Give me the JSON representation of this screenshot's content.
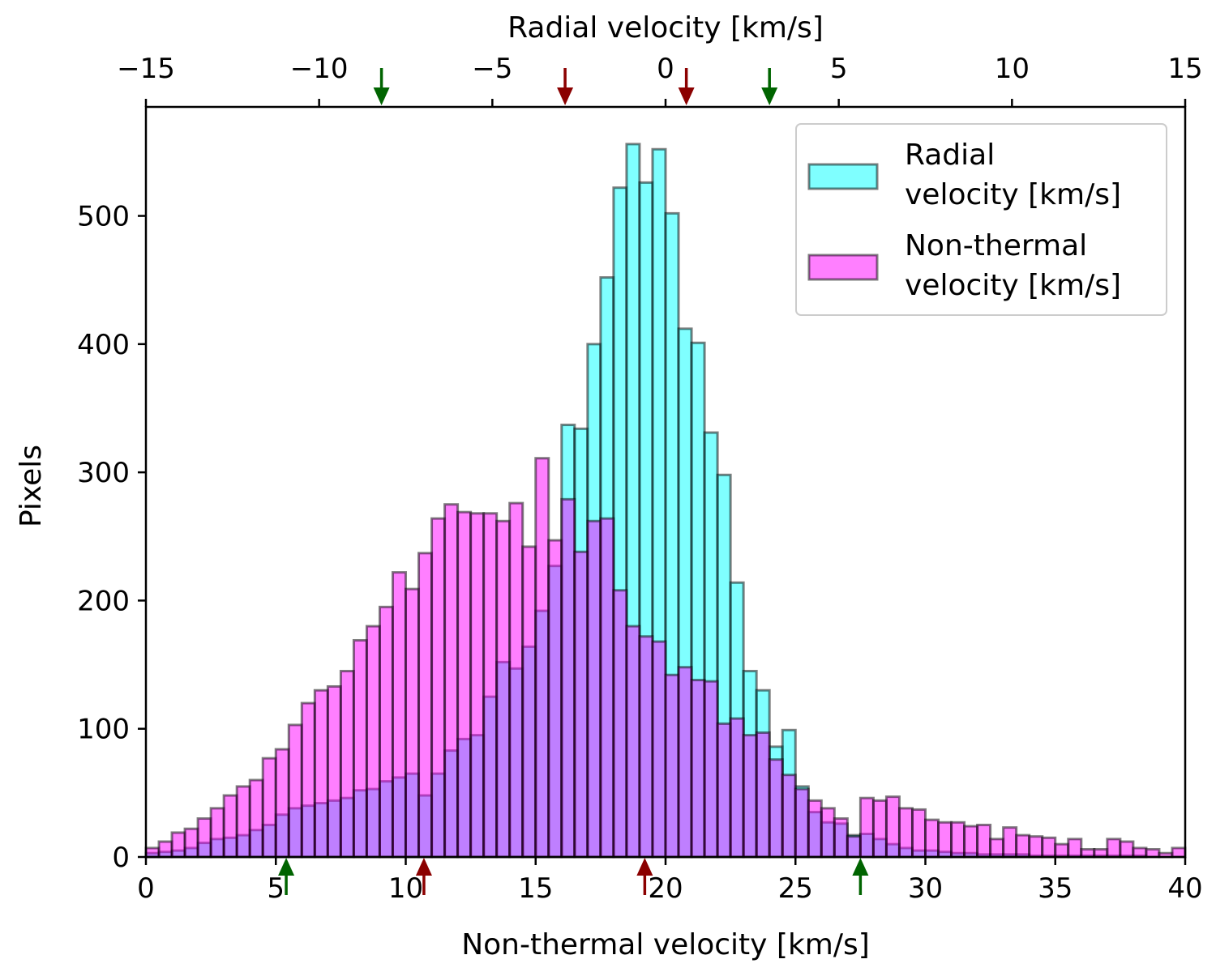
{
  "chart_data": {
    "type": "histogram",
    "ylabel": "Pixels",
    "top_axis": {
      "label": "Radial velocity [km/s]",
      "range": [
        -15,
        15
      ],
      "ticks": [
        -15,
        -10,
        -5,
        0,
        5,
        10,
        15
      ],
      "tick_labels": [
        "−15",
        "−10",
        "−5",
        "0",
        "5",
        "10",
        "15"
      ]
    },
    "bottom_axis": {
      "label": "Non-thermal velocity [km/s]",
      "range": [
        0,
        40
      ],
      "ticks": [
        0,
        5,
        10,
        15,
        20,
        25,
        30,
        35,
        40
      ],
      "tick_labels": [
        "0",
        "5",
        "10",
        "15",
        "20",
        "25",
        "30",
        "35",
        "40"
      ]
    },
    "y_axis": {
      "range": [
        0,
        585
      ],
      "ticks": [
        0,
        100,
        200,
        300,
        400,
        500
      ],
      "tick_labels": [
        "0",
        "100",
        "200",
        "300",
        "400",
        "500"
      ]
    },
    "legend": {
      "position": "top-right",
      "entries": [
        {
          "lines": [
            "Radial",
            "velocity [km/s]"
          ],
          "color": "#00ffff"
        },
        {
          "lines": [
            "Non-thermal",
            "velocity [km/s]"
          ],
          "color": "#ff00ff"
        }
      ]
    },
    "colors": {
      "radial": "#00ffff",
      "nonthermal": "#ff00ff",
      "edge": "#000000",
      "green_arrow": "#006400",
      "red_arrow": "#8b0000"
    },
    "series": [
      {
        "name": "Radial velocity [km/s]",
        "axis": "top",
        "bin_start": -15,
        "bin_width": 0.375,
        "counts": [
          3,
          4,
          5,
          7,
          11,
          14,
          15,
          17,
          21,
          25,
          33,
          38,
          40,
          42,
          44,
          46,
          52,
          53,
          59,
          62,
          65,
          48,
          65,
          83,
          92,
          95,
          125,
          152,
          147,
          164,
          192,
          227,
          237,
          253,
          270,
          245,
          204,
          215,
          205,
          183,
          176,
          142,
          147,
          138,
          137,
          104,
          107,
          96,
          97,
          65,
          55,
          35,
          27,
          26,
          17,
          18,
          14,
          10,
          7,
          5,
          5,
          4,
          3,
          3,
          2,
          2,
          2,
          2,
          1,
          1,
          1,
          1,
          1,
          1,
          1,
          1,
          1,
          0,
          0,
          0
        ],
        "overrides": [
          {
            "bin": 32,
            "count": 337
          },
          {
            "bin": 33,
            "count": 334
          },
          {
            "bin": 34,
            "count": 400
          },
          {
            "bin": 35,
            "count": 452
          },
          {
            "bin": 36,
            "count": 522
          },
          {
            "bin": 37,
            "count": 556
          },
          {
            "bin": 38,
            "count": 526
          },
          {
            "bin": 39,
            "count": 552
          },
          {
            "bin": 40,
            "count": 502
          },
          {
            "bin": 41,
            "count": 412
          },
          {
            "bin": 42,
            "count": 401
          },
          {
            "bin": 43,
            "count": 331
          },
          {
            "bin": 44,
            "count": 298
          },
          {
            "bin": 45,
            "count": 214
          },
          {
            "bin": 46,
            "count": 145
          },
          {
            "bin": 47,
            "count": 130
          },
          {
            "bin": 48,
            "count": 86
          },
          {
            "bin": 49,
            "count": 99
          }
        ]
      },
      {
        "name": "Non-thermal velocity [km/s]",
        "axis": "bottom",
        "bin_start": 0,
        "bin_width": 0.5,
        "counts": [
          7,
          12,
          19,
          22,
          30,
          38,
          48,
          55,
          60,
          77,
          84,
          103,
          120,
          130,
          133,
          145,
          169,
          180,
          195,
          222,
          209,
          237,
          264,
          275,
          269,
          268,
          268,
          262,
          276,
          242,
          311,
          247,
          279,
          238,
          262,
          264,
          208,
          180,
          172,
          168,
          142,
          148,
          138,
          137,
          104,
          108,
          95,
          97,
          76,
          64,
          53,
          44,
          38,
          30,
          16,
          46,
          44,
          47,
          38,
          37,
          29,
          27,
          27,
          24,
          25,
          14,
          23,
          17,
          16,
          15,
          10,
          14,
          6,
          6,
          14,
          12,
          7,
          6,
          3,
          7
        ],
        "overrides": []
      }
    ],
    "arrows": [
      {
        "axis": "top",
        "x": -8.2,
        "color": "green"
      },
      {
        "axis": "top",
        "x": -2.9,
        "color": "red"
      },
      {
        "axis": "top",
        "x": 0.6,
        "color": "red"
      },
      {
        "axis": "top",
        "x": 3.0,
        "color": "green"
      },
      {
        "axis": "bottom",
        "x": 5.4,
        "color": "green"
      },
      {
        "axis": "bottom",
        "x": 10.7,
        "color": "red"
      },
      {
        "axis": "bottom",
        "x": 19.2,
        "color": "red"
      },
      {
        "axis": "bottom",
        "x": 27.5,
        "color": "green"
      }
    ]
  }
}
